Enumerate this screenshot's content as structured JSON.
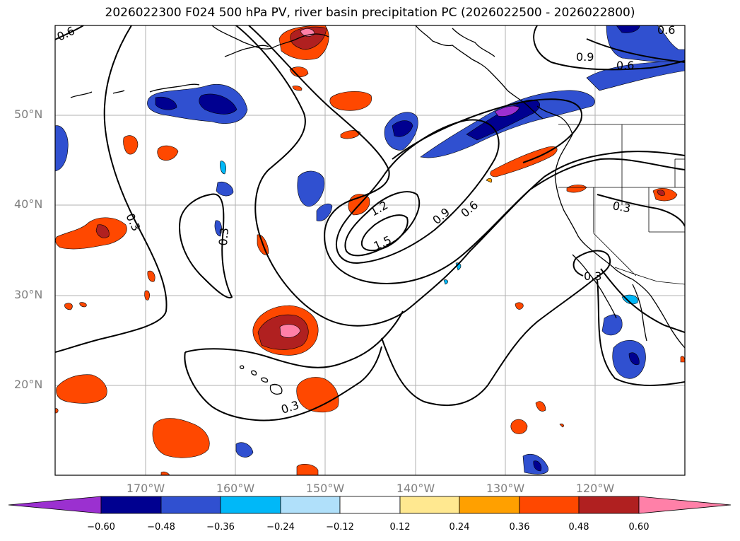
{
  "title": "2026022300 F024 500 hPa PV, river basin precipitation PC (2026022500 - 2026022800)",
  "latitude_labels": [
    "50°N",
    "40°N",
    "30°N",
    "20°N"
  ],
  "longitude_labels": [
    "170°W",
    "160°W",
    "150°W",
    "140°W",
    "130°W",
    "120°W"
  ],
  "contour_labels": [
    "0.6",
    "0.6",
    "0.9",
    "0.6",
    "0.3",
    "0.3",
    "1.2",
    "1.5",
    "0.9",
    "0.6",
    "0.3",
    "0.3",
    "0.3"
  ],
  "colorbar": {
    "tick_labels": [
      "−0.60",
      "−0.48",
      "−0.36",
      "−0.24",
      "−0.12",
      "0.12",
      "0.24",
      "0.36",
      "0.48",
      "0.60"
    ],
    "colors": [
      "#9b30d0",
      "#000090",
      "#3050d0",
      "#00b8f8",
      "#b0e0fa",
      "#ffffff",
      "#ffe890",
      "#ffa000",
      "#ff4800",
      "#b02020",
      "#ff80a8"
    ]
  },
  "shading_colors": {
    "purple": "#9b30d0",
    "navy": "#000090",
    "blue": "#3050d0",
    "cyan": "#00b8f8",
    "lightblue": "#b0e0fa",
    "yellow": "#ffe890",
    "orange": "#ffa000",
    "redorange": "#ff4800",
    "darkred": "#b02020",
    "pink": "#ff80a8"
  }
}
